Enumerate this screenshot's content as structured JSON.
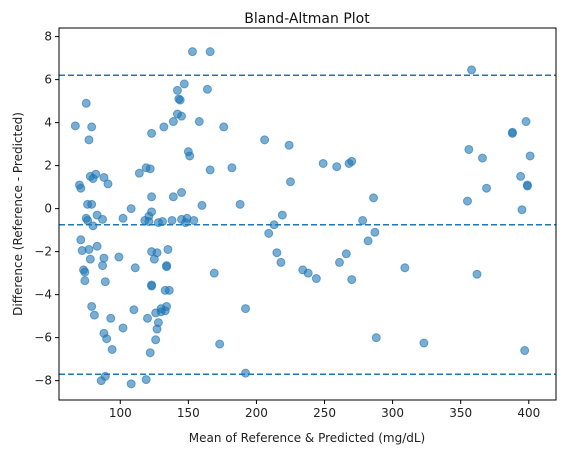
{
  "chart_data": {
    "type": "scatter",
    "title": "Bland-Altman Plot",
    "xlabel": "Mean of Reference & Predicted (mg/dL)",
    "ylabel": "Difference (Reference - Predicted)",
    "xlim": [
      55,
      420
    ],
    "ylim": [
      -8.9,
      8.4
    ],
    "xticks": [
      100,
      150,
      200,
      250,
      300,
      350,
      400
    ],
    "yticks": [
      -8,
      -6,
      -4,
      -2,
      0,
      2,
      4,
      6,
      8
    ],
    "grid": false,
    "point_color": "#1f77b4",
    "reference_lines": [
      {
        "y": 6.2,
        "style": "dashed",
        "color": "#1f77b4"
      },
      {
        "y": -0.75,
        "style": "dashed",
        "color": "#1f77b4"
      },
      {
        "y": -7.7,
        "style": "dashed",
        "color": "#1f77b4"
      }
    ],
    "points": [
      {
        "x": 67,
        "y": 3.85
      },
      {
        "x": 70,
        "y": 1.1
      },
      {
        "x": 71,
        "y": 0.95
      },
      {
        "x": 71,
        "y": -1.45
      },
      {
        "x": 72,
        "y": -1.95
      },
      {
        "x": 73,
        "y": -2.85
      },
      {
        "x": 74,
        "y": -3.35
      },
      {
        "x": 74,
        "y": -2.95
      },
      {
        "x": 75,
        "y": 4.9
      },
      {
        "x": 75,
        "y": -0.45
      },
      {
        "x": 76,
        "y": -0.55
      },
      {
        "x": 76,
        "y": 0.2
      },
      {
        "x": 77,
        "y": 3.2
      },
      {
        "x": 77,
        "y": -1.9
      },
      {
        "x": 78,
        "y": 1.5
      },
      {
        "x": 78,
        "y": -2.35
      },
      {
        "x": 79,
        "y": 3.8
      },
      {
        "x": 79,
        "y": -4.55
      },
      {
        "x": 79,
        "y": 0.2
      },
      {
        "x": 80,
        "y": 1.4
      },
      {
        "x": 80,
        "y": -0.8
      },
      {
        "x": 81,
        "y": -4.95
      },
      {
        "x": 82,
        "y": 1.6
      },
      {
        "x": 83,
        "y": -0.3
      },
      {
        "x": 83,
        "y": -1.75
      },
      {
        "x": 86,
        "y": -8.0
      },
      {
        "x": 87,
        "y": -2.65
      },
      {
        "x": 87,
        "y": -0.5
      },
      {
        "x": 88,
        "y": -5.8
      },
      {
        "x": 88,
        "y": 1.45
      },
      {
        "x": 88,
        "y": -2.3
      },
      {
        "x": 89,
        "y": -7.8
      },
      {
        "x": 89,
        "y": -3.4
      },
      {
        "x": 90,
        "y": -6.05
      },
      {
        "x": 91,
        "y": 1.15
      },
      {
        "x": 93,
        "y": -5.1
      },
      {
        "x": 94,
        "y": -6.55
      },
      {
        "x": 99,
        "y": -2.25
      },
      {
        "x": 102,
        "y": -0.45
      },
      {
        "x": 102,
        "y": -5.55
      },
      {
        "x": 108,
        "y": 0.0
      },
      {
        "x": 108,
        "y": -8.15
      },
      {
        "x": 110,
        "y": -4.7
      },
      {
        "x": 111,
        "y": -2.75
      },
      {
        "x": 114,
        "y": 1.65
      },
      {
        "x": 118,
        "y": -0.55
      },
      {
        "x": 119,
        "y": 1.9
      },
      {
        "x": 119,
        "y": -7.95
      },
      {
        "x": 120,
        "y": -5.1
      },
      {
        "x": 121,
        "y": -0.35
      },
      {
        "x": 121,
        "y": -0.6
      },
      {
        "x": 122,
        "y": 1.85
      },
      {
        "x": 122,
        "y": -6.7
      },
      {
        "x": 123,
        "y": 0.55
      },
      {
        "x": 123,
        "y": -2.0
      },
      {
        "x": 123,
        "y": 3.5
      },
      {
        "x": 123,
        "y": -0.15
      },
      {
        "x": 123,
        "y": -3.6
      },
      {
        "x": 123,
        "y": -3.55
      },
      {
        "x": 125,
        "y": -2.35
      },
      {
        "x": 126,
        "y": -4.85
      },
      {
        "x": 126,
        "y": -6.1
      },
      {
        "x": 127,
        "y": -2.05
      },
      {
        "x": 127,
        "y": -5.6
      },
      {
        "x": 128,
        "y": -0.65
      },
      {
        "x": 128,
        "y": -5.3
      },
      {
        "x": 130,
        "y": -4.65
      },
      {
        "x": 130,
        "y": -4.8
      },
      {
        "x": 131,
        "y": -0.6
      },
      {
        "x": 132,
        "y": 3.8
      },
      {
        "x": 133,
        "y": -4.75
      },
      {
        "x": 133,
        "y": -3.8
      },
      {
        "x": 134,
        "y": -4.55
      },
      {
        "x": 134,
        "y": -2.65
      },
      {
        "x": 134,
        "y": -2.7
      },
      {
        "x": 135,
        "y": -1.9
      },
      {
        "x": 136,
        "y": -3.8
      },
      {
        "x": 138,
        "y": -0.55
      },
      {
        "x": 139,
        "y": 4.05
      },
      {
        "x": 139,
        "y": 0.55
      },
      {
        "x": 142,
        "y": 4.4
      },
      {
        "x": 142,
        "y": 5.5
      },
      {
        "x": 143,
        "y": 5.1
      },
      {
        "x": 144,
        "y": 5.05
      },
      {
        "x": 145,
        "y": 4.3
      },
      {
        "x": 145,
        "y": 0.75
      },
      {
        "x": 145,
        "y": -0.5
      },
      {
        "x": 147,
        "y": 5.8
      },
      {
        "x": 148,
        "y": -0.65
      },
      {
        "x": 149,
        "y": -0.45
      },
      {
        "x": 150,
        "y": 2.65
      },
      {
        "x": 151,
        "y": 2.45
      },
      {
        "x": 153,
        "y": 7.3
      },
      {
        "x": 154,
        "y": -0.55
      },
      {
        "x": 158,
        "y": 4.05
      },
      {
        "x": 160,
        "y": 0.15
      },
      {
        "x": 164,
        "y": 5.55
      },
      {
        "x": 166,
        "y": 7.3
      },
      {
        "x": 166,
        "y": 1.8
      },
      {
        "x": 169,
        "y": -3.0
      },
      {
        "x": 173,
        "y": -6.3
      },
      {
        "x": 176,
        "y": 3.8
      },
      {
        "x": 182,
        "y": 1.9
      },
      {
        "x": 188,
        "y": 0.2
      },
      {
        "x": 192,
        "y": -4.65
      },
      {
        "x": 192,
        "y": -7.65
      },
      {
        "x": 206,
        "y": 3.2
      },
      {
        "x": 209,
        "y": -1.15
      },
      {
        "x": 213,
        "y": -0.75
      },
      {
        "x": 215,
        "y": -2.05
      },
      {
        "x": 218,
        "y": -2.5
      },
      {
        "x": 219,
        "y": -0.3
      },
      {
        "x": 224,
        "y": 2.95
      },
      {
        "x": 225,
        "y": 1.25
      },
      {
        "x": 234,
        "y": -2.85
      },
      {
        "x": 238,
        "y": -3.0
      },
      {
        "x": 244,
        "y": -3.25
      },
      {
        "x": 249,
        "y": 2.1
      },
      {
        "x": 259,
        "y": 1.95
      },
      {
        "x": 261,
        "y": -2.5
      },
      {
        "x": 266,
        "y": -2.1
      },
      {
        "x": 268,
        "y": 2.1
      },
      {
        "x": 270,
        "y": 2.2
      },
      {
        "x": 270,
        "y": -3.3
      },
      {
        "x": 278,
        "y": -0.55
      },
      {
        "x": 282,
        "y": -1.5
      },
      {
        "x": 286,
        "y": 0.5
      },
      {
        "x": 287,
        "y": -1.1
      },
      {
        "x": 288,
        "y": -6.0
      },
      {
        "x": 309,
        "y": -2.75
      },
      {
        "x": 323,
        "y": -6.25
      },
      {
        "x": 355,
        "y": 0.35
      },
      {
        "x": 356,
        "y": 2.75
      },
      {
        "x": 358,
        "y": 6.45
      },
      {
        "x": 362,
        "y": -3.05
      },
      {
        "x": 366,
        "y": 2.35
      },
      {
        "x": 369,
        "y": 0.95
      },
      {
        "x": 388,
        "y": 3.55
      },
      {
        "x": 388,
        "y": 3.5
      },
      {
        "x": 394,
        "y": 1.5
      },
      {
        "x": 395,
        "y": -0.05
      },
      {
        "x": 397,
        "y": -6.6
      },
      {
        "x": 398,
        "y": 4.05
      },
      {
        "x": 399,
        "y": 1.1
      },
      {
        "x": 399,
        "y": 1.05
      },
      {
        "x": 401,
        "y": 2.45
      }
    ]
  }
}
